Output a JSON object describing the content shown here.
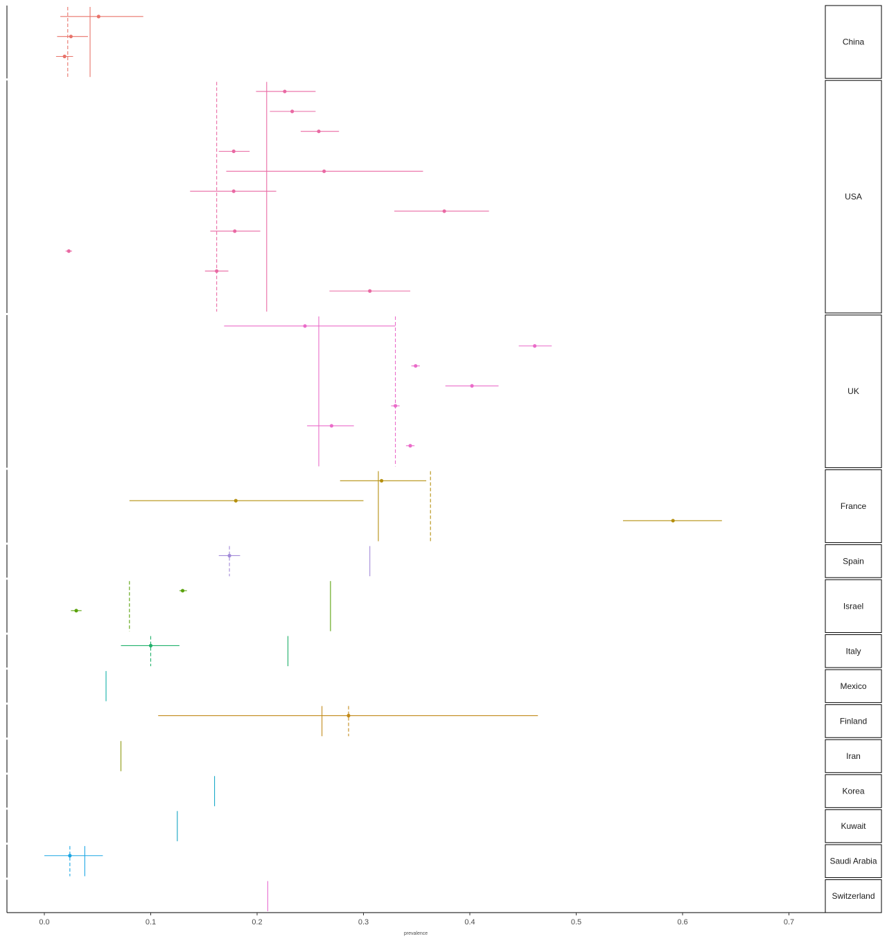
{
  "chart_data": {
    "type": "forest",
    "xlabel": "prevalence",
    "xlim": [
      -0.035,
      0.735
    ],
    "x_ticks": [
      0.0,
      0.1,
      0.2,
      0.3,
      0.4,
      0.5,
      0.6,
      0.7
    ],
    "x_tick_labels": [
      "0.0",
      "0.1",
      "0.2",
      "0.3",
      "0.4",
      "0.5",
      "0.6",
      "0.7"
    ],
    "grid": false,
    "panels": [
      {
        "name": "China",
        "color": "#e8736a",
        "summary_solid": 0.043,
        "summary_dashed": 0.022,
        "studies": [
          {
            "est": 0.051,
            "lo": 0.015,
            "hi": 0.093
          },
          {
            "est": 0.025,
            "lo": 0.012,
            "hi": 0.041
          },
          {
            "est": 0.019,
            "lo": 0.011,
            "hi": 0.027
          }
        ]
      },
      {
        "name": "USA",
        "color": "#e969a3",
        "summary_solid": 0.209,
        "summary_dashed": 0.162,
        "studies": [
          {
            "est": 0.226,
            "lo": 0.199,
            "hi": 0.255
          },
          {
            "est": 0.233,
            "lo": 0.212,
            "hi": 0.255
          },
          {
            "est": 0.258,
            "lo": 0.241,
            "hi": 0.277
          },
          {
            "est": 0.178,
            "lo": 0.164,
            "hi": 0.193
          },
          {
            "est": 0.263,
            "lo": 0.171,
            "hi": 0.356
          },
          {
            "est": 0.178,
            "lo": 0.137,
            "hi": 0.218
          },
          {
            "est": 0.376,
            "lo": 0.329,
            "hi": 0.418
          },
          {
            "est": 0.179,
            "lo": 0.156,
            "hi": 0.203
          },
          {
            "est": 0.023,
            "lo": 0.02,
            "hi": 0.026
          },
          {
            "est": 0.162,
            "lo": 0.151,
            "hi": 0.173
          },
          {
            "est": 0.306,
            "lo": 0.268,
            "hi": 0.344
          }
        ]
      },
      {
        "name": "UK",
        "color": "#ea6bc9",
        "summary_solid": 0.258,
        "summary_dashed": 0.33,
        "studies": [
          {
            "est": 0.245,
            "lo": 0.169,
            "hi": 0.33
          },
          {
            "est": 0.461,
            "lo": 0.446,
            "hi": 0.477
          },
          {
            "est": 0.349,
            "lo": 0.345,
            "hi": 0.353
          },
          {
            "est": 0.402,
            "lo": 0.377,
            "hi": 0.427
          },
          {
            "est": 0.33,
            "lo": 0.326,
            "hi": 0.334
          },
          {
            "est": 0.27,
            "lo": 0.247,
            "hi": 0.291
          },
          {
            "est": 0.344,
            "lo": 0.34,
            "hi": 0.348
          }
        ]
      },
      {
        "name": "France",
        "color": "#b58f0e",
        "summary_solid": 0.314,
        "summary_dashed": 0.363,
        "studies": [
          {
            "est": 0.317,
            "lo": 0.278,
            "hi": 0.359
          },
          {
            "est": 0.18,
            "lo": 0.08,
            "hi": 0.3
          },
          {
            "est": 0.591,
            "lo": 0.544,
            "hi": 0.637
          }
        ]
      },
      {
        "name": "Spain",
        "color": "#a28ad8",
        "summary_solid": 0.306,
        "summary_dashed": 0.174,
        "studies": [
          {
            "est": 0.174,
            "lo": 0.164,
            "hi": 0.184
          }
        ]
      },
      {
        "name": "Israel",
        "color": "#5aa20c",
        "summary_solid": 0.269,
        "summary_dashed": 0.08,
        "studies": [
          {
            "est": 0.13,
            "lo": 0.127,
            "hi": 0.134
          },
          {
            "est": 0.03,
            "lo": 0.025,
            "hi": 0.035
          }
        ]
      },
      {
        "name": "Italy",
        "color": "#1fb069",
        "summary_solid": 0.229,
        "summary_dashed": 0.1,
        "studies": [
          {
            "est": 0.1,
            "lo": 0.072,
            "hi": 0.127
          }
        ]
      },
      {
        "name": "Mexico",
        "color": "#14b2a7",
        "summary_solid": 0.058,
        "summary_dashed": null,
        "studies": []
      },
      {
        "name": "Finland",
        "color": "#c28a1a",
        "summary_solid": 0.261,
        "summary_dashed": 0.286,
        "studies": [
          {
            "est": 0.286,
            "lo": 0.107,
            "hi": 0.464
          }
        ]
      },
      {
        "name": "Iran",
        "color": "#8f9a14",
        "summary_solid": 0.072,
        "summary_dashed": null,
        "studies": []
      },
      {
        "name": "Korea",
        "color": "#14a7c8",
        "summary_solid": 0.16,
        "summary_dashed": null,
        "studies": []
      },
      {
        "name": "Kuwait",
        "color": "#12a3c2",
        "summary_solid": 0.125,
        "summary_dashed": null,
        "studies": []
      },
      {
        "name": "Saudi Arabia",
        "color": "#1aa6e4",
        "summary_solid": 0.038,
        "summary_dashed": 0.024,
        "studies": [
          {
            "est": 0.024,
            "lo": 0.0,
            "hi": 0.055
          }
        ]
      },
      {
        "name": "Switzerland",
        "color": "#e86ad0",
        "summary_solid": 0.21,
        "summary_dashed": null,
        "studies": []
      }
    ]
  }
}
